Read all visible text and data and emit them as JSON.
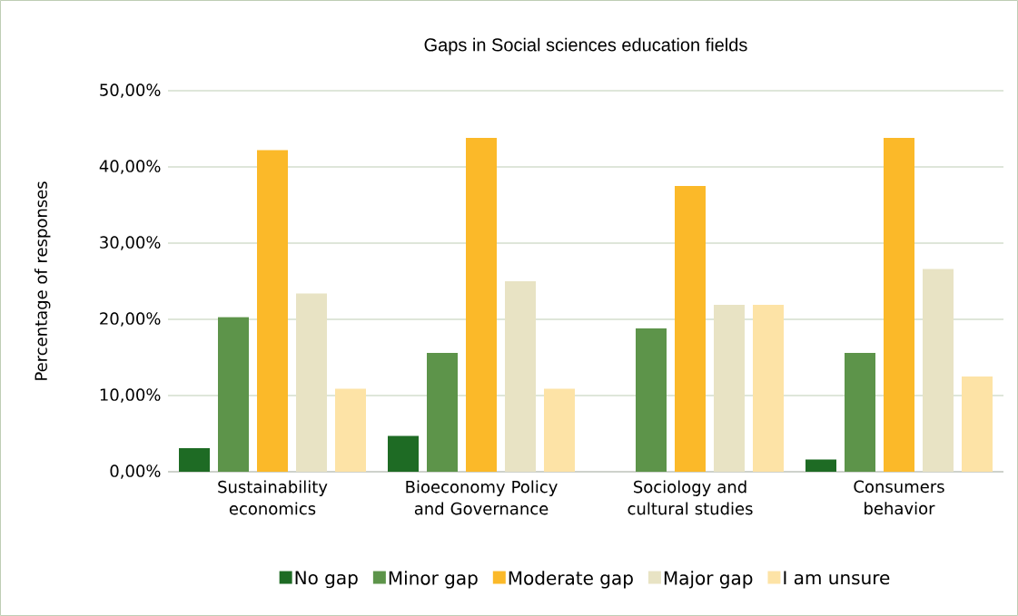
{
  "chart_data": {
    "type": "bar",
    "title": "Gaps in Social sciences education fields",
    "ylabel": "Percentage of responses",
    "categories": [
      "Sustainability economics",
      "Bioeconomy Policy and Governance",
      "Sociology and cultural studies",
      "Consumers behavior"
    ],
    "series": [
      {
        "name": "No gap",
        "color": "#1e6b24",
        "values": [
          3.1,
          4.7,
          0,
          1.6
        ]
      },
      {
        "name": "Minor gap",
        "color": "#5d944a",
        "values": [
          20.3,
          15.6,
          18.8,
          15.6
        ]
      },
      {
        "name": "Moderate gap",
        "color": "#fbb929",
        "values": [
          42.2,
          43.8,
          37.5,
          43.8
        ]
      },
      {
        "name": "Major gap",
        "color": "#e8e3c4",
        "values": [
          23.4,
          25.0,
          21.9,
          26.6
        ]
      },
      {
        "name": "I am unsure",
        "color": "#fde3a6",
        "values": [
          10.9,
          10.9,
          21.9,
          12.5
        ]
      }
    ],
    "ylim": [
      0,
      50
    ],
    "yticks": [
      {
        "value": 0,
        "label": "0,00%"
      },
      {
        "value": 10,
        "label": "10,00%"
      },
      {
        "value": 20,
        "label": "20,00%"
      },
      {
        "value": 30,
        "label": "30,00%"
      },
      {
        "value": 40,
        "label": "40,00%"
      },
      {
        "value": 50,
        "label": "50,00%"
      }
    ],
    "grid": "y",
    "legend": "bottom"
  }
}
